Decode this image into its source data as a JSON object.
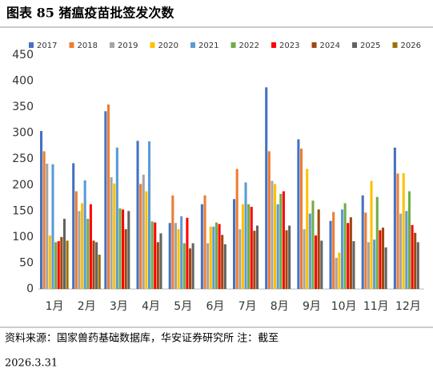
{
  "chart_data": {
    "type": "bar",
    "title": "图表 85 猪瘟疫苗批签发次数",
    "categories": [
      "1月",
      "2月",
      "3月",
      "4月",
      "5月",
      "6月",
      "7月",
      "8月",
      "9月",
      "10月",
      "11月",
      "12月"
    ],
    "series": [
      {
        "name": "2017",
        "color": "#4472c4",
        "values": [
          304,
          242,
          342,
          285,
          127,
          163,
          173,
          388,
          288,
          131,
          180,
          272
        ]
      },
      {
        "name": "2018",
        "color": "#ed7d31",
        "values": [
          265,
          188,
          355,
          202,
          180,
          180,
          231,
          265,
          270,
          148,
          147,
          222
        ]
      },
      {
        "name": "2019",
        "color": "#a5a5a5",
        "values": [
          241,
          150,
          215,
          220,
          127,
          88,
          115,
          208,
          115,
          60,
          90,
          145
        ]
      },
      {
        "name": "2020",
        "color": "#ffc000",
        "values": [
          103,
          165,
          203,
          188,
          115,
          120,
          163,
          202,
          231,
          70,
          208,
          223
        ]
      },
      {
        "name": "2021",
        "color": "#5b9bd5",
        "values": [
          240,
          209,
          272,
          284,
          140,
          120,
          205,
          163,
          145,
          153,
          95,
          150
        ]
      },
      {
        "name": "2022",
        "color": "#70ad47",
        "values": [
          90,
          135,
          155,
          130,
          88,
          128,
          163,
          183,
          170,
          165,
          177,
          188
        ]
      },
      {
        "name": "2023",
        "color": "#ff0000",
        "values": [
          92,
          163,
          153,
          128,
          137,
          125,
          158,
          188,
          103,
          127,
          113,
          123
        ]
      },
      {
        "name": "2024",
        "color": "#9e480e",
        "values": [
          100,
          93,
          115,
          90,
          78,
          104,
          112,
          113,
          153,
          138,
          118,
          108
        ]
      },
      {
        "name": "2025",
        "color": "#636363",
        "values": [
          135,
          90,
          150,
          107,
          88,
          86,
          122,
          122,
          93,
          92,
          80,
          90
        ]
      },
      {
        "name": "2026",
        "color": "#997300",
        "values": [
          93,
          66,
          null,
          null,
          null,
          null,
          null,
          null,
          null,
          null,
          null,
          null
        ]
      }
    ],
    "ylim": [
      0,
      450
    ],
    "yticks": [
      0,
      50,
      100,
      150,
      200,
      250,
      300,
      350,
      400,
      450
    ],
    "source": "资料来源：国家兽药基础数据库，华安证券研究所 注：截至",
    "date": "2026.3.31"
  }
}
